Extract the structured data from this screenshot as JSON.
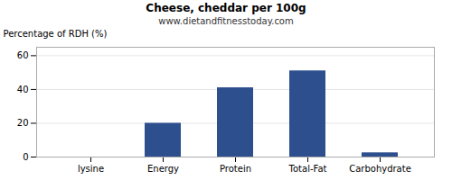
{
  "chart_data": {
    "type": "bar",
    "title": "Cheese, cheddar per 100g",
    "subtitle": "www.dietandfitnesstoday.com",
    "categories": [
      "lysine",
      "Energy",
      "Protein",
      "Total-Fat",
      "Carbohydrate"
    ],
    "values": [
      0,
      20,
      41,
      51,
      2.5
    ],
    "color": "#2d4f8e",
    "ylabel": "Percentage of RDH (%)",
    "ylim": [
      0,
      65
    ],
    "yticks": [
      0,
      20,
      40,
      60
    ],
    "grid": true
  }
}
